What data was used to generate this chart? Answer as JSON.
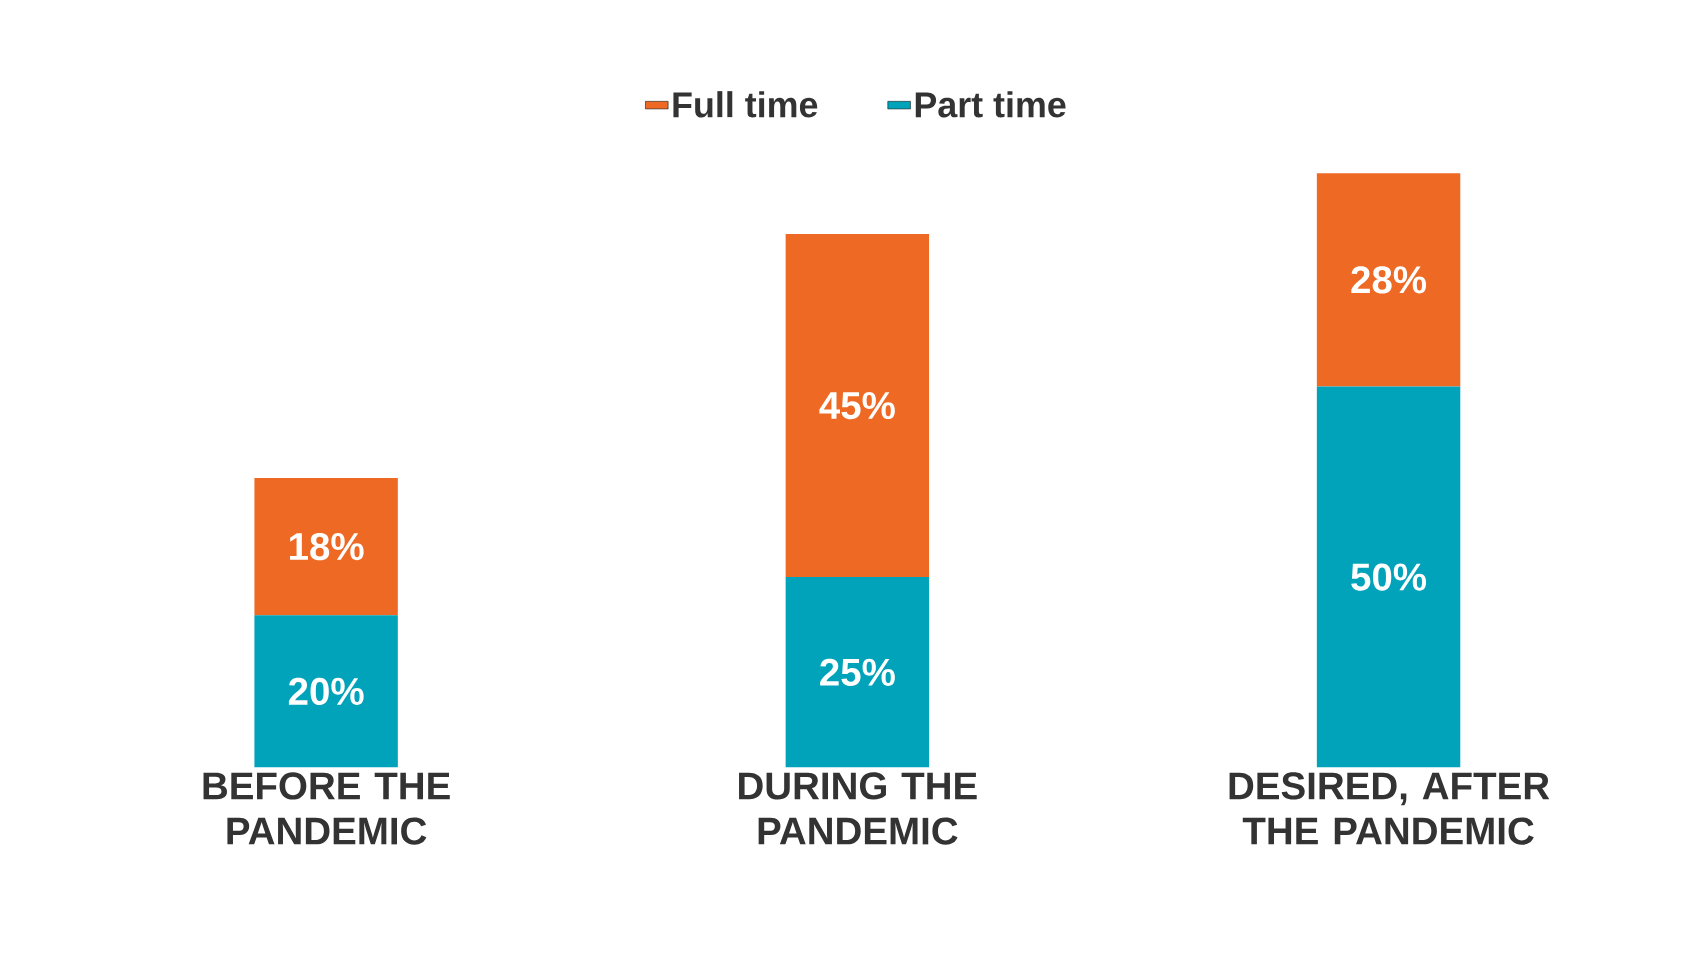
{
  "chart_data": {
    "type": "bar",
    "stacked": true,
    "categories": [
      "BEFORE THE PANDEMIC",
      "DURING THE PANDEMIC",
      "DESIRED, AFTER THE PANDEMIC"
    ],
    "series": [
      {
        "name": "Part time",
        "color": "#00a3ba",
        "values": [
          20,
          25,
          50
        ],
        "value_labels": [
          "20%",
          "25%",
          "50%"
        ]
      },
      {
        "name": "Full time",
        "color": "#ee6a24",
        "values": [
          18,
          45,
          28
        ],
        "value_labels": [
          "18%",
          "45%",
          "28%"
        ]
      }
    ],
    "legend": "top"
  }
}
